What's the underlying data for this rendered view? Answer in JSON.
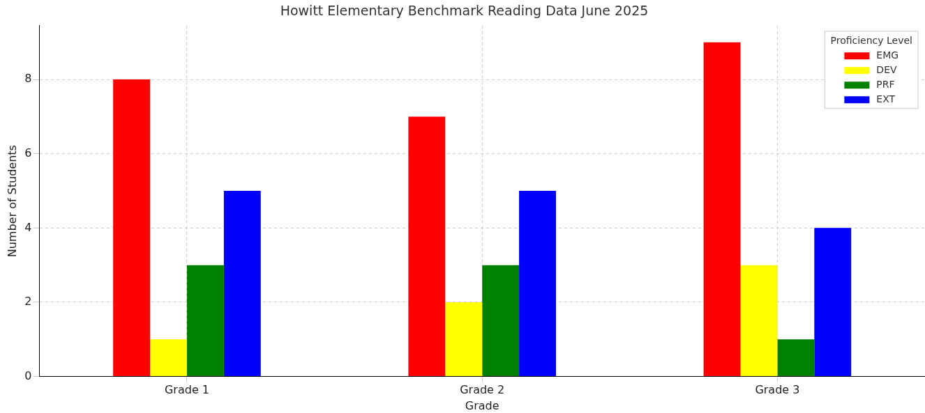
{
  "chart_data": {
    "type": "bar",
    "title": "Howitt Elementary Benchmark Reading Data June 2025",
    "xlabel": "Grade",
    "ylabel": "Number of Students",
    "legend_title": "Proficiency Level",
    "categories": [
      "Grade 1",
      "Grade 2",
      "Grade 3"
    ],
    "series": [
      {
        "name": "EMG",
        "color": "#ff0000",
        "values": [
          8,
          7,
          9
        ]
      },
      {
        "name": "DEV",
        "color": "#ffff00",
        "values": [
          1,
          2,
          3
        ]
      },
      {
        "name": "PRF",
        "color": "#008000",
        "values": [
          3,
          3,
          1
        ]
      },
      {
        "name": "EXT",
        "color": "#0000ff",
        "values": [
          5,
          5,
          4
        ]
      }
    ],
    "ylim": [
      0,
      9.45
    ],
    "yticks": [
      0,
      2,
      4,
      6,
      8
    ],
    "grid": true,
    "legend": "top right"
  }
}
